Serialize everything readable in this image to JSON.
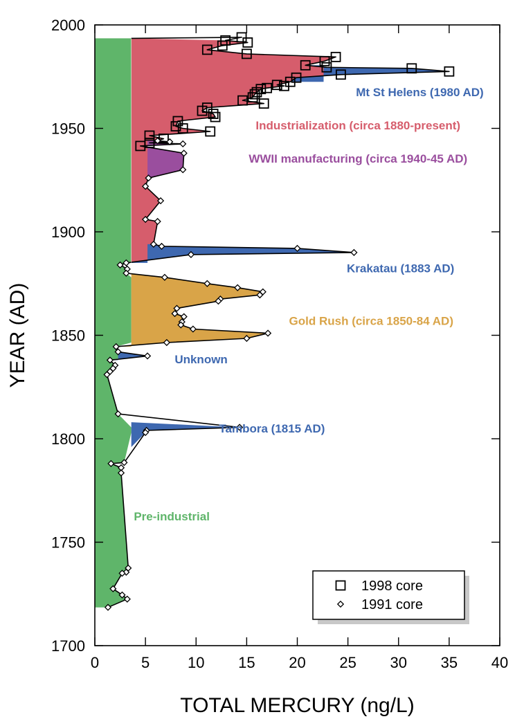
{
  "chart_data": {
    "type": "area",
    "xlabel": "TOTAL MERCURY (ng/L)",
    "ylabel": "YEAR (AD)",
    "xlim": [
      0,
      40
    ],
    "ylim": [
      1700,
      2000
    ],
    "x_ticks": [
      0,
      5,
      10,
      15,
      20,
      25,
      30,
      35,
      40
    ],
    "y_ticks": [
      1700,
      1750,
      1800,
      1850,
      1900,
      1950,
      2000
    ],
    "grid": false,
    "legend_position": "bottom-right",
    "colors": {
      "pre_industrial": "#5fb56a",
      "volcanic": "#3e68b0",
      "gold_rush": "#d9a448",
      "industrialization": "#d65d6c",
      "wwii": "#9a4e9e"
    },
    "series": [
      {
        "name": "1998 core",
        "marker": "square",
        "points": [
          [
            14.5,
            1994
          ],
          [
            15.1,
            1991.5
          ],
          [
            12.9,
            1992.5
          ],
          [
            12.6,
            1990
          ],
          [
            11.1,
            1988
          ],
          [
            15.0,
            1986
          ],
          [
            23.8,
            1984.5
          ],
          [
            22.7,
            1982.5
          ],
          [
            20.8,
            1980.5
          ],
          [
            22.9,
            1979.5
          ],
          [
            31.3,
            1979
          ],
          [
            35.0,
            1977.5
          ],
          [
            24.3,
            1976
          ],
          [
            19.9,
            1974.5
          ],
          [
            19.3,
            1972.5
          ],
          [
            18.7,
            1970.5
          ],
          [
            18.0,
            1971
          ],
          [
            17.0,
            1969.5
          ],
          [
            16.4,
            1969
          ],
          [
            16.0,
            1967.5
          ],
          [
            15.8,
            1966.5
          ],
          [
            15.6,
            1965
          ],
          [
            14.6,
            1963.5
          ],
          [
            16.7,
            1962
          ],
          [
            11.1,
            1960
          ],
          [
            10.6,
            1958.5
          ],
          [
            11.7,
            1957
          ],
          [
            11.9,
            1955.5
          ],
          [
            8.2,
            1953.5
          ],
          [
            8.0,
            1951
          ],
          [
            8.7,
            1950
          ],
          [
            11.4,
            1948.5
          ],
          [
            5.4,
            1946.5
          ],
          [
            6.8,
            1945
          ],
          [
            5.4,
            1943
          ],
          [
            4.5,
            1941.5
          ]
        ]
      },
      {
        "name": "1991 core",
        "marker": "diamond",
        "points": [
          [
            6.2,
            1944
          ],
          [
            7.4,
            1943.5
          ],
          [
            8.7,
            1942.5
          ],
          [
            8.8,
            1938
          ],
          [
            8.7,
            1930
          ],
          [
            5.3,
            1926
          ],
          [
            5.0,
            1922
          ],
          [
            6.5,
            1915
          ],
          [
            5.0,
            1906
          ],
          [
            6.2,
            1905
          ],
          [
            5.8,
            1894
          ],
          [
            6.6,
            1893
          ],
          [
            20.0,
            1892
          ],
          [
            25.6,
            1890
          ],
          [
            9.5,
            1889
          ],
          [
            3.1,
            1885
          ],
          [
            2.5,
            1884
          ],
          [
            3.2,
            1882
          ],
          [
            3.1,
            1880
          ],
          [
            6.9,
            1878
          ],
          [
            11.1,
            1875
          ],
          [
            14.1,
            1873
          ],
          [
            16.6,
            1871
          ],
          [
            16.3,
            1869.5
          ],
          [
            12.4,
            1867.5
          ],
          [
            12.2,
            1866.5
          ],
          [
            8.1,
            1863
          ],
          [
            7.9,
            1860.5
          ],
          [
            8.8,
            1859
          ],
          [
            8.6,
            1856.5
          ],
          [
            8.5,
            1855
          ],
          [
            9.7,
            1853
          ],
          [
            17.1,
            1851
          ],
          [
            15.0,
            1848.5
          ],
          [
            7.1,
            1846.5
          ],
          [
            2.1,
            1844.5
          ],
          [
            2.3,
            1842
          ],
          [
            5.2,
            1840
          ],
          [
            1.5,
            1838
          ],
          [
            2.0,
            1835.5
          ],
          [
            1.8,
            1834
          ],
          [
            1.5,
            1832.5
          ],
          [
            1.2,
            1831
          ],
          [
            2.3,
            1812
          ],
          [
            14.3,
            1805.5
          ],
          [
            5.1,
            1804
          ],
          [
            5.0,
            1803
          ],
          [
            2.9,
            1788.5
          ],
          [
            1.6,
            1788
          ],
          [
            2.6,
            1786
          ],
          [
            2.6,
            1783.5
          ],
          [
            3.3,
            1737.5
          ],
          [
            3.1,
            1735.5
          ],
          [
            2.7,
            1735
          ],
          [
            1.8,
            1727.5
          ],
          [
            2.7,
            1724.5
          ],
          [
            3.2,
            1722.5
          ],
          [
            1.3,
            1718.5
          ]
        ]
      }
    ],
    "annotations": [
      {
        "text": "Mt St Helens (1980 AD)",
        "x": 32.1,
        "y": 1967.5,
        "color": "#3e68b0"
      },
      {
        "text": "Industrialization (circa 1880-present)",
        "x": 26.0,
        "y": 1951.5,
        "color": "#d65d6c"
      },
      {
        "text": "WWII manufacturing (circa 1940-45 AD)",
        "x": 26.0,
        "y": 1935.5,
        "color": "#9a4e9e"
      },
      {
        "text": "Krakatau (1883 AD)",
        "x": 30.2,
        "y": 1882.5,
        "color": "#3e68b0"
      },
      {
        "text": "Gold Rush (circa 1850-84 AD)",
        "x": 27.3,
        "y": 1857,
        "color": "#d9a448"
      },
      {
        "text": "Unknown",
        "x": 10.5,
        "y": 1838.5,
        "color": "#3e68b0"
      },
      {
        "text": "Tambora (1815 AD)",
        "x": 17.5,
        "y": 1805,
        "color": "#3e68b0"
      },
      {
        "text": "Pre-industrial",
        "x": 7.6,
        "y": 1762.5,
        "color": "#5fb56a"
      }
    ],
    "legend": [
      {
        "label": "1998 core",
        "marker": "square"
      },
      {
        "label": "1991 core",
        "marker": "diamond"
      }
    ]
  }
}
